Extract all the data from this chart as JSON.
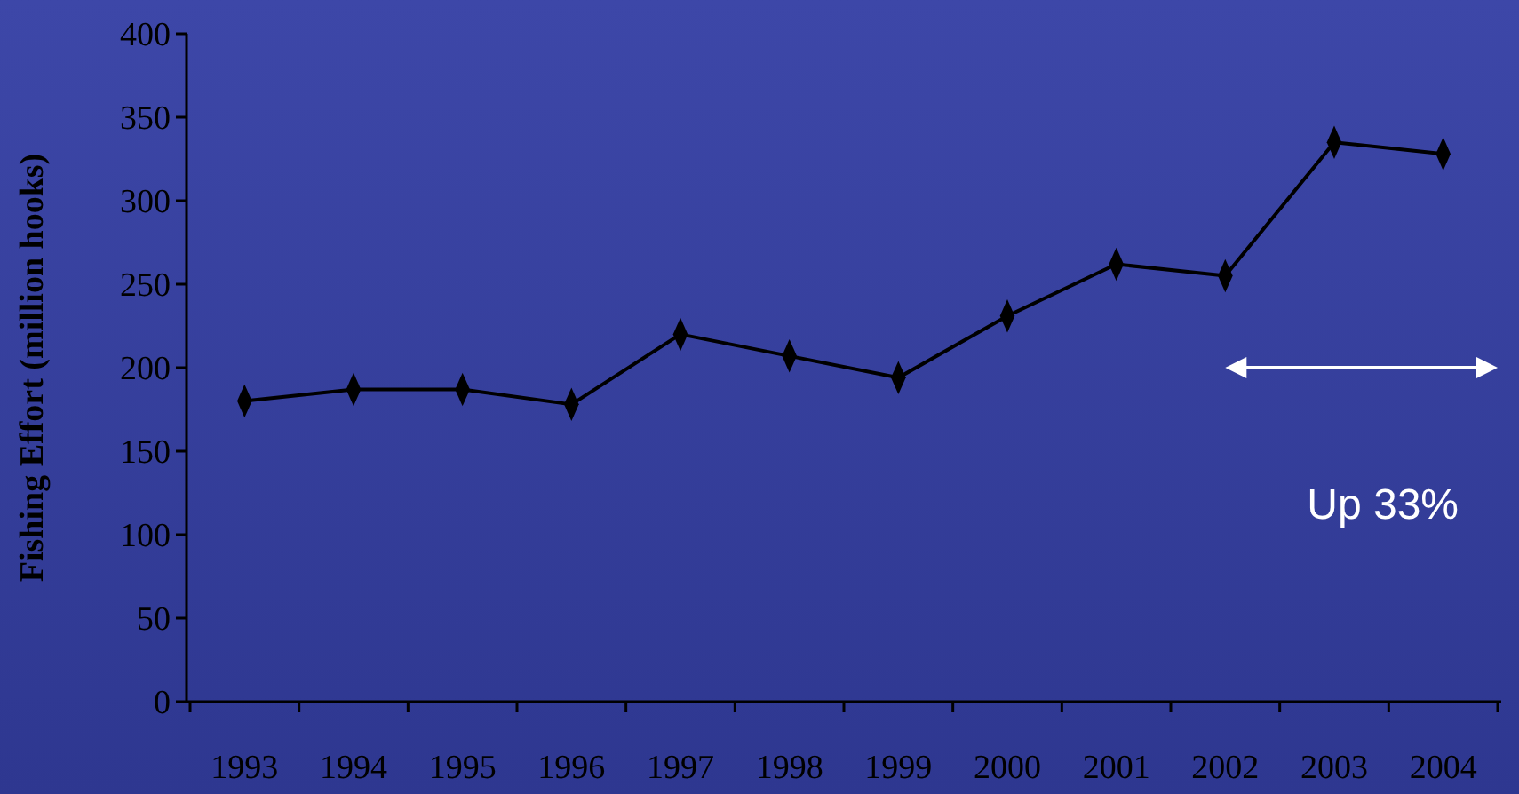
{
  "chart_data": {
    "type": "line",
    "ylabel": "Fishing Effort (million hooks)",
    "categories": [
      "1993",
      "1994",
      "1995",
      "1996",
      "1997",
      "1998",
      "1999",
      "2000",
      "2001",
      "2002",
      "2003",
      "2004"
    ],
    "values": [
      180,
      187,
      187,
      178,
      220,
      207,
      194,
      231,
      262,
      255,
      335,
      328
    ],
    "color": "#000000",
    "marker": "diamond",
    "line_style": "solid",
    "ylim": [
      0,
      400
    ],
    "yticks": [
      0,
      50,
      100,
      150,
      200,
      250,
      300,
      350,
      400
    ],
    "annotations": [
      "Up 33%"
    ]
  }
}
